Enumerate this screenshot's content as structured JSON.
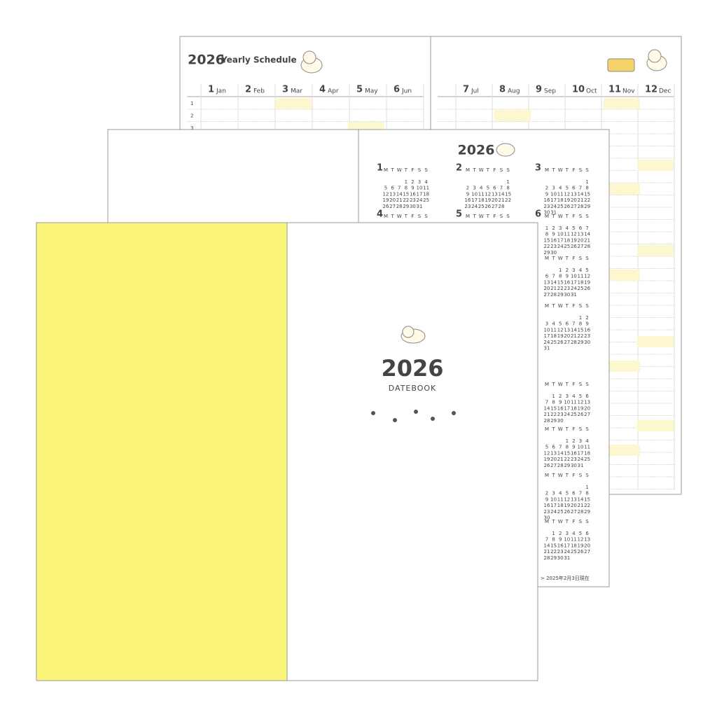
{
  "yearly": {
    "year": "2026",
    "title": "Yearly Schedule",
    "months_left": [
      {
        "num": "1",
        "name": "Jan"
      },
      {
        "num": "2",
        "name": "Feb"
      },
      {
        "num": "3",
        "name": "Mar"
      },
      {
        "num": "4",
        "name": "Apr"
      },
      {
        "num": "5",
        "name": "May"
      },
      {
        "num": "6",
        "name": "Jun"
      }
    ],
    "months_right": [
      {
        "num": "7",
        "name": "Jul"
      },
      {
        "num": "8",
        "name": "Aug"
      },
      {
        "num": "9",
        "name": "Sep"
      },
      {
        "num": "10",
        "name": "Oct"
      },
      {
        "num": "11",
        "name": "Nov"
      },
      {
        "num": "12",
        "name": "Dec"
      }
    ],
    "row_numbers": [
      "1",
      "2",
      "3"
    ]
  },
  "calendar": {
    "year": "2026",
    "weekdays": [
      "M",
      "T",
      "W",
      "T",
      "F",
      "S",
      "S"
    ],
    "months": [
      {
        "label": "1",
        "weeks": [
          [
            null,
            null,
            null,
            1,
            2,
            3,
            4
          ],
          [
            5,
            6,
            7,
            8,
            9,
            10,
            11
          ],
          [
            12,
            13,
            14,
            15,
            16,
            17,
            18
          ],
          [
            19,
            20,
            21,
            22,
            23,
            24,
            25
          ],
          [
            26,
            27,
            28,
            29,
            30,
            31,
            null
          ]
        ]
      },
      {
        "label": "2",
        "weeks": [
          [
            null,
            null,
            null,
            null,
            null,
            null,
            1
          ],
          [
            2,
            3,
            4,
            5,
            6,
            7,
            8
          ],
          [
            9,
            10,
            11,
            12,
            13,
            14,
            15
          ],
          [
            16,
            17,
            18,
            19,
            20,
            21,
            22
          ],
          [
            23,
            24,
            25,
            26,
            27,
            28,
            null
          ]
        ]
      },
      {
        "label": "3",
        "weeks": [
          [
            null,
            null,
            null,
            null,
            null,
            null,
            1
          ],
          [
            2,
            3,
            4,
            5,
            6,
            7,
            8
          ],
          [
            9,
            10,
            11,
            12,
            13,
            14,
            15
          ],
          [
            16,
            17,
            18,
            19,
            20,
            21,
            22
          ],
          [
            23,
            24,
            25,
            26,
            27,
            28,
            29
          ],
          [
            30,
            31,
            null,
            null,
            null,
            null,
            null
          ]
        ]
      },
      {
        "label": "4"
      },
      {
        "label": "5"
      },
      {
        "label": "6",
        "weeks": [
          [
            1,
            2,
            3,
            4,
            5,
            6,
            7
          ],
          [
            8,
            9,
            10,
            11,
            12,
            13,
            14
          ],
          [
            15,
            16,
            17,
            18,
            19,
            20,
            21
          ],
          [
            22,
            23,
            24,
            25,
            26,
            27,
            28
          ],
          [
            29,
            30,
            null,
            null,
            null,
            null,
            null
          ]
        ]
      },
      {
        "weeks": [
          [
            null,
            null,
            1,
            2,
            3,
            4,
            5
          ],
          [
            6,
            7,
            8,
            9,
            10,
            11,
            12
          ],
          [
            13,
            14,
            15,
            16,
            17,
            18,
            19
          ],
          [
            20,
            21,
            22,
            23,
            24,
            25,
            26
          ],
          [
            27,
            28,
            29,
            30,
            31,
            null,
            null
          ]
        ]
      },
      {
        "weeks": [
          [
            null,
            null,
            null,
            null,
            null,
            1,
            2
          ],
          [
            3,
            4,
            5,
            6,
            7,
            8,
            9
          ],
          [
            10,
            11,
            12,
            13,
            14,
            15,
            16
          ],
          [
            17,
            18,
            19,
            20,
            21,
            22,
            23
          ],
          [
            24,
            25,
            26,
            27,
            28,
            29,
            30
          ],
          [
            31,
            null,
            null,
            null,
            null,
            null,
            null
          ]
        ]
      },
      {
        "weeks": [
          [
            null,
            1,
            2,
            3,
            4,
            5,
            6
          ],
          [
            7,
            8,
            9,
            10,
            11,
            12,
            13
          ],
          [
            14,
            15,
            16,
            17,
            18,
            19,
            20
          ],
          [
            21,
            22,
            23,
            24,
            25,
            26,
            27
          ],
          [
            28,
            29,
            30,
            null,
            null,
            null,
            null
          ]
        ]
      },
      {
        "weeks": [
          [
            null,
            null,
            null,
            1,
            2,
            3,
            4
          ],
          [
            5,
            6,
            7,
            8,
            9,
            10,
            11
          ],
          [
            12,
            13,
            14,
            15,
            16,
            17,
            18
          ],
          [
            19,
            20,
            21,
            22,
            23,
            24,
            25
          ],
          [
            26,
            27,
            28,
            29,
            30,
            31,
            null
          ]
        ]
      },
      {
        "weeks": [
          [
            null,
            null,
            null,
            null,
            null,
            null,
            1
          ],
          [
            2,
            3,
            4,
            5,
            6,
            7,
            8
          ],
          [
            9,
            10,
            11,
            12,
            13,
            14,
            15
          ],
          [
            16,
            17,
            18,
            19,
            20,
            21,
            22
          ],
          [
            23,
            24,
            25,
            26,
            27,
            28,
            29
          ],
          [
            30,
            null,
            null,
            null,
            null,
            null,
            null
          ]
        ]
      },
      {
        "weeks": [
          [
            null,
            1,
            2,
            3,
            4,
            5,
            6
          ],
          [
            7,
            8,
            9,
            10,
            11,
            12,
            13
          ],
          [
            14,
            15,
            16,
            17,
            18,
            19,
            20
          ],
          [
            21,
            22,
            23,
            24,
            25,
            26,
            27
          ],
          [
            28,
            29,
            30,
            31,
            null,
            null,
            null
          ]
        ]
      }
    ],
    "note": "> 2025年2月3日現在"
  },
  "cover": {
    "year": "2026",
    "subtitle": "DATEBOOK"
  }
}
